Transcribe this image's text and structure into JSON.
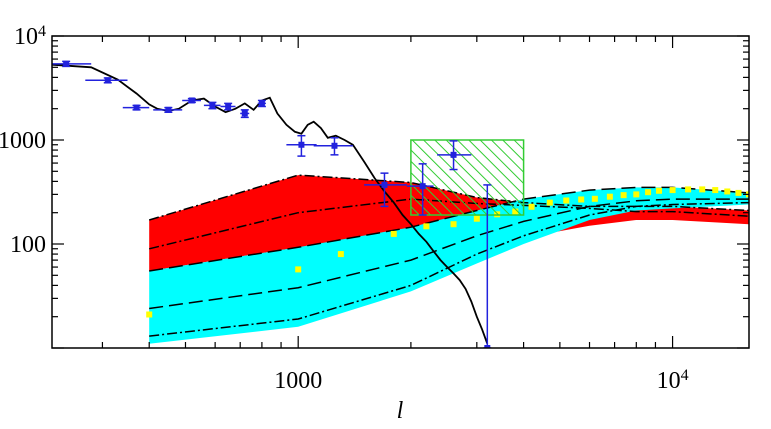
{
  "chart_data": {
    "type": "line",
    "xlabel": "l",
    "xscale": "log",
    "yscale": "log",
    "xlim": [
      220,
      16000
    ],
    "ylim": [
      10,
      10000
    ],
    "grid": false,
    "x_ticks": [
      {
        "value": 1000,
        "label": "1000",
        "sup": ""
      },
      {
        "value": 10000,
        "label": "10",
        "sup": "4"
      }
    ],
    "y_ticks": [
      {
        "value": 100,
        "label": "100",
        "sup": ""
      },
      {
        "value": 1000,
        "label": "1000",
        "sup": ""
      },
      {
        "value": 10000,
        "label": "10",
        "sup": "4"
      }
    ],
    "colors": {
      "red_band": "#ff0000",
      "cyan_band": "#00ffff",
      "data_points": "#2222dd",
      "dotted_model": "#ffff00",
      "hatched_box": "#33cc33",
      "model_curve": "#000000"
    },
    "model_curve": {
      "x": [
        220,
        280,
        330,
        370,
        400,
        420,
        450,
        480,
        520,
        560,
        600,
        640,
        680,
        720,
        760,
        800,
        840,
        880,
        930,
        980,
        1020,
        1060,
        1100,
        1150,
        1200,
        1260,
        1330,
        1400,
        1500,
        1600,
        1700,
        1800,
        1900,
        2000,
        2100,
        2200,
        2300,
        2400,
        2500,
        2600,
        2700,
        2800,
        2900,
        3000,
        3100,
        3200
      ],
      "y": [
        5300,
        5000,
        3800,
        2800,
        2200,
        2000,
        1900,
        2000,
        2400,
        2500,
        2100,
        1850,
        2000,
        2250,
        1950,
        2400,
        2550,
        1800,
        1400,
        1200,
        1150,
        1400,
        1500,
        1300,
        1050,
        1100,
        1000,
        900,
        620,
        430,
        320,
        250,
        190,
        155,
        125,
        105,
        85,
        70,
        60,
        52,
        45,
        37,
        28,
        20,
        15,
        11
      ]
    },
    "data_points": {
      "x": [
        240,
        310,
        370,
        450,
        520,
        590,
        650,
        720,
        800,
        1020,
        1250,
        1700,
        2150,
        2600,
        3200
      ],
      "y": [
        5400,
        3750,
        2050,
        1950,
        2400,
        2150,
        2100,
        1800,
        2250,
        900,
        880,
        370,
        360,
        720,
        10
      ],
      "x_err": [
        [
          220,
          280
        ],
        [
          270,
          350
        ],
        [
          340,
          400
        ],
        [
          410,
          490
        ],
        [
          490,
          550
        ],
        [
          560,
          620
        ],
        [
          620,
          680
        ],
        [
          700,
          740
        ],
        [
          780,
          820
        ],
        [
          930,
          1120
        ],
        [
          1100,
          1400
        ],
        [
          1500,
          1950
        ],
        [
          1950,
          2300
        ],
        [
          2350,
          2900
        ],
        [
          3200,
          3200
        ]
      ],
      "y_err": [
        [
          5100,
          5700
        ],
        [
          3550,
          3950
        ],
        [
          1950,
          2150
        ],
        [
          1850,
          2050
        ],
        [
          2300,
          2500
        ],
        [
          2000,
          2300
        ],
        [
          1950,
          2250
        ],
        [
          1650,
          1950
        ],
        [
          2100,
          2400
        ],
        [
          700,
          1100
        ],
        [
          720,
          1050
        ],
        [
          230,
          480
        ],
        [
          190,
          590
        ],
        [
          520,
          980
        ],
        [
          10,
          370
        ]
      ]
    },
    "red_band": {
      "x": [
        400,
        1000,
        2000,
        3000,
        4000,
        6000,
        8000,
        10000,
        16000
      ],
      "upper": [
        170,
        460,
        390,
        280,
        250,
        230,
        230,
        230,
        210
      ],
      "lower": [
        55,
        93,
        85,
        95,
        115,
        150,
        170,
        170,
        155
      ]
    },
    "cyan_band": {
      "x": [
        400,
        1000,
        2000,
        3000,
        4000,
        6000,
        8000,
        10000,
        16000
      ],
      "upper": [
        55,
        93,
        145,
        210,
        270,
        330,
        350,
        350,
        310
      ],
      "lower": [
        11,
        16,
        35,
        65,
        100,
        170,
        210,
        220,
        240
      ]
    },
    "red_dashdot": {
      "x": [
        400,
        1000,
        2000,
        3000,
        4000,
        6000,
        8000,
        10000,
        16000
      ],
      "y": [
        90,
        200,
        270,
        245,
        235,
        220,
        205,
        205,
        185
      ]
    },
    "long_dash": {
      "x": [
        400,
        1000,
        2000,
        3000,
        4000,
        6000,
        8000,
        10000,
        16000
      ],
      "y": [
        24,
        38,
        70,
        120,
        165,
        230,
        260,
        270,
        270
      ]
    },
    "cyan_dashdot": {
      "x": [
        400,
        1000,
        2000,
        3000,
        4000,
        6000,
        8000,
        10000,
        16000
      ],
      "y": [
        13,
        19,
        40,
        80,
        120,
        190,
        230,
        240,
        250
      ]
    },
    "yellow_dots": {
      "x": [
        400,
        1000,
        1300,
        1800,
        2200,
        2600,
        3000,
        3400,
        3800,
        4200,
        4700,
        5200,
        5700,
        6200,
        6800,
        7400,
        8000,
        8600,
        9200,
        10000,
        11000,
        12000,
        13000,
        14000,
        15000,
        16000
      ],
      "y": [
        21,
        57,
        80,
        125,
        148,
        155,
        175,
        193,
        205,
        228,
        250,
        262,
        268,
        272,
        285,
        295,
        300,
        315,
        325,
        330,
        335,
        335,
        330,
        320,
        310,
        300
      ]
    },
    "hatched_box": {
      "x": [
        2000,
        4000
      ],
      "y": [
        190,
        1000
      ]
    }
  }
}
